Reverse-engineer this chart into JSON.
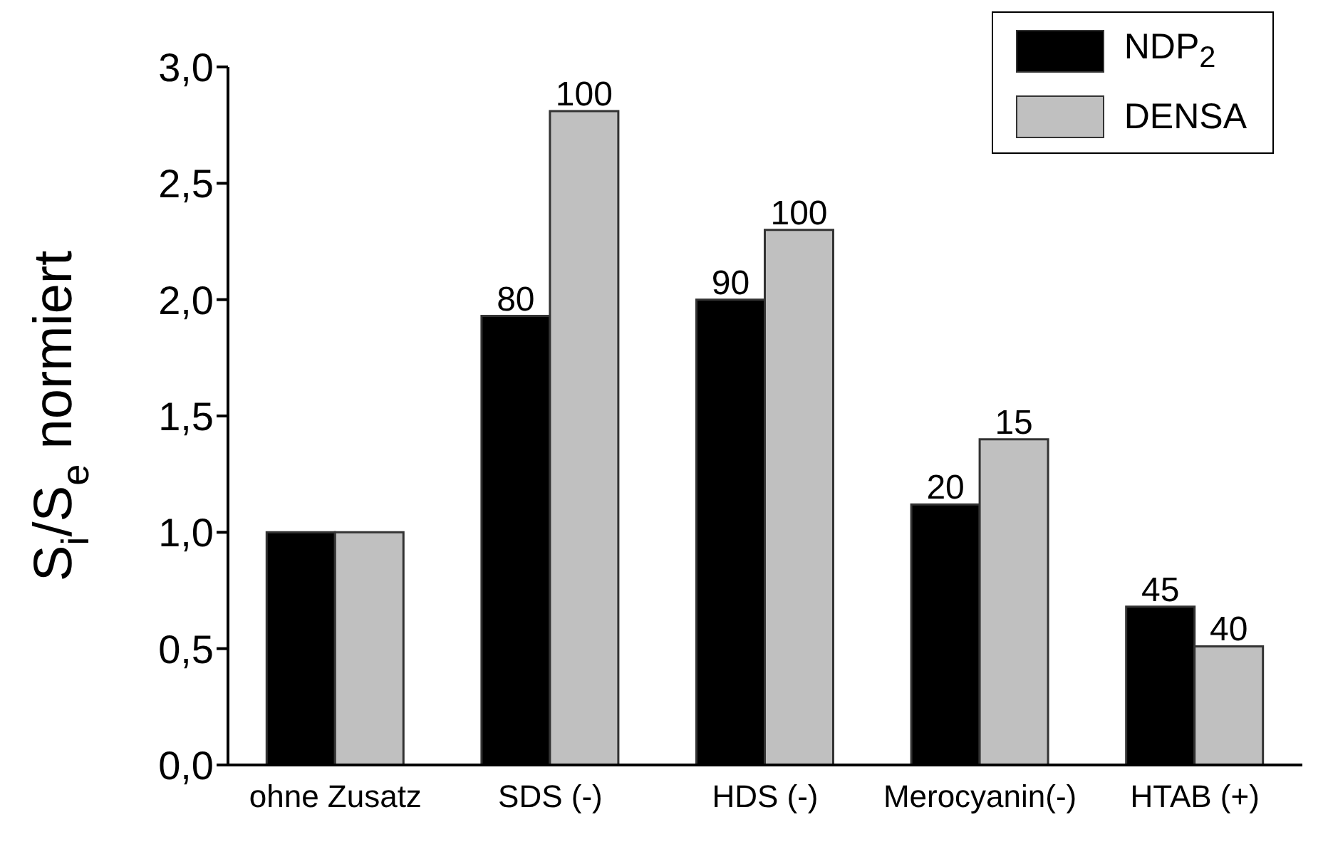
{
  "chart_data": {
    "type": "bar",
    "ylabel": "S$_{i}$/S$_{e}$ normiert",
    "categories": [
      "ohne Zusatz",
      "SDS (-)",
      "HDS (-)",
      "Merocyanin(-)",
      "HTAB (+)"
    ],
    "series": [
      {
        "name": "NDP$_{2}$",
        "color": "#000000",
        "values": [
          1.0,
          1.93,
          2.0,
          1.12,
          0.68
        ]
      },
      {
        "name": "DENSA",
        "color": "#c0c0c0",
        "values": [
          1.0,
          2.81,
          2.3,
          1.4,
          0.51
        ]
      }
    ],
    "annotations": [
      {
        "text": "80",
        "x": "SDS (-)",
        "y": 1.93
      },
      {
        "text": "100",
        "x": "SDS (-)",
        "y": 2.81
      },
      {
        "text": "90",
        "x": "HDS (-)",
        "y": 2.0
      },
      {
        "text": "100",
        "x": "HDS (-)",
        "y": 2.3
      },
      {
        "text": "20",
        "x": "Merocyanin(-)",
        "y": 1.12
      },
      {
        "text": "15",
        "x": "Merocyanin(-)",
        "y": 1.4
      },
      {
        "text": "45",
        "x": "HTAB (+)",
        "y": 0.68
      },
      {
        "text": "40",
        "x": "HTAB (+)",
        "y": 0.51
      }
    ],
    "ylim": [
      0,
      3
    ],
    "yticks": [
      {
        "value": 0,
        "label": "0,0"
      },
      {
        "value": 0.5,
        "label": "0,5"
      },
      {
        "value": 1,
        "label": "1,0"
      },
      {
        "value": 1.5,
        "label": "1,5"
      },
      {
        "value": 2,
        "label": "2,0"
      },
      {
        "value": 2.5,
        "label": "2,5"
      },
      {
        "value": 3,
        "label": "3,0"
      }
    ],
    "grid": false,
    "legend": "top right"
  }
}
